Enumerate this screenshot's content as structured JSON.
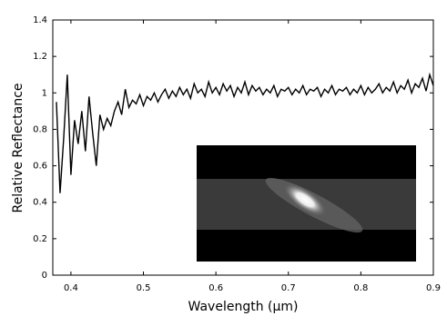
{
  "chart_data": {
    "type": "line",
    "xlabel": "Wavelength (µm)",
    "ylabel": "Relative Reflectance",
    "xlim": [
      0.375,
      0.9
    ],
    "xticks": [
      0.4,
      0.5,
      0.6,
      0.7,
      0.8,
      0.9
    ],
    "ylim": [
      0,
      1.4
    ],
    "yticks": [
      0,
      0.2,
      0.4,
      0.6,
      0.8,
      1,
      1.2,
      1.4
    ],
    "color": "#000000",
    "x": [
      0.38,
      0.385,
      0.39,
      0.395,
      0.4,
      0.405,
      0.41,
      0.415,
      0.42,
      0.425,
      0.43,
      0.435,
      0.44,
      0.445,
      0.45,
      0.455,
      0.46,
      0.465,
      0.47,
      0.475,
      0.48,
      0.485,
      0.49,
      0.495,
      0.5,
      0.505,
      0.51,
      0.515,
      0.52,
      0.525,
      0.53,
      0.535,
      0.54,
      0.545,
      0.55,
      0.555,
      0.56,
      0.565,
      0.57,
      0.575,
      0.58,
      0.585,
      0.59,
      0.595,
      0.6,
      0.605,
      0.61,
      0.615,
      0.62,
      0.625,
      0.63,
      0.635,
      0.64,
      0.645,
      0.65,
      0.655,
      0.66,
      0.665,
      0.67,
      0.675,
      0.68,
      0.685,
      0.69,
      0.695,
      0.7,
      0.705,
      0.71,
      0.715,
      0.72,
      0.725,
      0.73,
      0.735,
      0.74,
      0.745,
      0.75,
      0.755,
      0.76,
      0.765,
      0.77,
      0.775,
      0.78,
      0.785,
      0.79,
      0.795,
      0.8,
      0.805,
      0.81,
      0.815,
      0.82,
      0.825,
      0.83,
      0.835,
      0.84,
      0.845,
      0.85,
      0.855,
      0.86,
      0.865,
      0.87,
      0.875,
      0.88,
      0.885,
      0.89,
      0.895,
      0.9
    ],
    "values": [
      0.95,
      0.45,
      0.75,
      1.1,
      0.55,
      0.85,
      0.72,
      0.9,
      0.68,
      0.98,
      0.78,
      0.6,
      0.88,
      0.8,
      0.86,
      0.82,
      0.9,
      0.95,
      0.88,
      1.02,
      0.92,
      0.96,
      0.94,
      0.99,
      0.93,
      0.98,
      0.96,
      1.0,
      0.95,
      0.99,
      1.02,
      0.97,
      1.01,
      0.98,
      1.03,
      0.99,
      1.02,
      0.97,
      1.05,
      1.0,
      1.02,
      0.98,
      1.06,
      1.0,
      1.03,
      0.99,
      1.05,
      1.01,
      1.04,
      0.98,
      1.03,
      1.0,
      1.06,
      0.99,
      1.04,
      1.01,
      1.03,
      0.99,
      1.02,
      1.0,
      1.04,
      0.98,
      1.02,
      1.01,
      1.03,
      0.99,
      1.02,
      1.0,
      1.04,
      0.99,
      1.02,
      1.01,
      1.03,
      0.98,
      1.02,
      1.0,
      1.04,
      0.99,
      1.02,
      1.01,
      1.03,
      0.99,
      1.02,
      1.0,
      1.04,
      0.99,
      1.03,
      1.0,
      1.02,
      1.05,
      1.0,
      1.03,
      1.01,
      1.06,
      1.0,
      1.04,
      1.02,
      1.07,
      1.0,
      1.05,
      1.03,
      1.08,
      1.01,
      1.1,
      1.04
    ]
  }
}
